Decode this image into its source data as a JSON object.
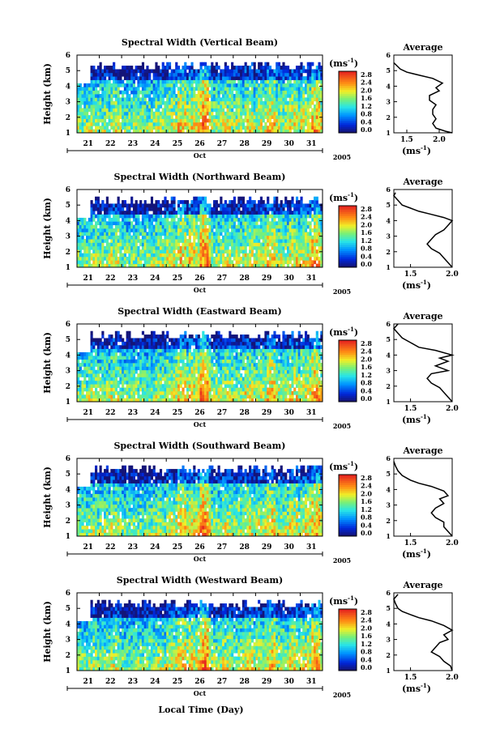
{
  "figure": {
    "x_axis_label": "Local Time (Day)"
  },
  "chart_data": [
    {
      "type": "heatmap",
      "title": "Spectral Width (Vertical Beam)",
      "ylabel": "Height (km)",
      "y_ticks": [
        1,
        2,
        3,
        4,
        5,
        6
      ],
      "ylim": [
        1,
        6
      ],
      "x_days": [
        "21",
        "22",
        "23",
        "24",
        "25",
        "26",
        "27",
        "28",
        "29",
        "30",
        "31"
      ],
      "x_month_label": "Oct",
      "x_year_label": "2005",
      "colorbar_unit": "(ms",
      "colorbar_unit_exp": "-1",
      "colorbar_unit_close": ")",
      "colorbar_ticks": [
        "2.8",
        "2.4",
        "2.0",
        "1.6",
        "1.2",
        "0.8",
        "0.4",
        "0.0"
      ],
      "colorbar_range": [
        0,
        3.0
      ],
      "average": {
        "title": "Average",
        "xlabel": "(ms",
        "xlabel_exp": "-1",
        "xlabel_close": ")",
        "x_ticks": [
          "1.5",
          "2.0"
        ],
        "x_tick_values": [
          1.5,
          2.0
        ],
        "xlim": [
          1.3,
          2.2
        ],
        "ylim": [
          1,
          6
        ],
        "y_ticks": [
          1,
          2,
          3,
          4,
          5,
          6
        ],
        "profile": [
          [
            2.2,
            1.0
          ],
          [
            2.1,
            1.1
          ],
          [
            1.95,
            1.3
          ],
          [
            1.9,
            1.6
          ],
          [
            1.95,
            1.9
          ],
          [
            1.9,
            2.2
          ],
          [
            1.9,
            2.5
          ],
          [
            1.95,
            2.8
          ],
          [
            1.85,
            3.1
          ],
          [
            1.85,
            3.4
          ],
          [
            2.0,
            3.7
          ],
          [
            1.95,
            3.9
          ],
          [
            2.05,
            4.2
          ],
          [
            1.9,
            4.5
          ],
          [
            1.7,
            4.7
          ],
          [
            1.5,
            4.9
          ],
          [
            1.4,
            5.1
          ],
          [
            1.35,
            5.3
          ],
          [
            1.3,
            5.5
          ]
        ]
      }
    },
    {
      "type": "heatmap",
      "title": "Spectral Width (Northward Beam)",
      "ylabel": "Height (km)",
      "y_ticks": [
        1,
        2,
        3,
        4,
        5,
        6
      ],
      "ylim": [
        1,
        6
      ],
      "x_days": [
        "21",
        "22",
        "23",
        "24",
        "25",
        "26",
        "27",
        "28",
        "29",
        "30",
        "31"
      ],
      "x_month_label": "Oct",
      "x_year_label": "2005",
      "colorbar_unit": "(ms",
      "colorbar_unit_exp": "-1",
      "colorbar_unit_close": ")",
      "colorbar_ticks": [
        "2.8",
        "2.4",
        "2.0",
        "1.6",
        "1.2",
        "0.8",
        "0.4",
        "0.0"
      ],
      "colorbar_range": [
        0,
        3.0
      ],
      "average": {
        "title": "Average",
        "xlabel": "(ms",
        "xlabel_exp": "-1",
        "xlabel_close": ")",
        "x_ticks": [
          "1.5",
          "2.0"
        ],
        "x_tick_values": [
          1.5,
          2.0
        ],
        "xlim": [
          1.3,
          2.0
        ],
        "ylim": [
          1,
          6
        ],
        "y_ticks": [
          1,
          2,
          3,
          4,
          5,
          6
        ],
        "profile": [
          [
            2.0,
            1.0
          ],
          [
            1.95,
            1.3
          ],
          [
            1.9,
            1.6
          ],
          [
            1.85,
            1.9
          ],
          [
            1.75,
            2.2
          ],
          [
            1.7,
            2.5
          ],
          [
            1.75,
            2.8
          ],
          [
            1.8,
            3.1
          ],
          [
            1.9,
            3.4
          ],
          [
            1.95,
            3.7
          ],
          [
            2.0,
            4.0
          ],
          [
            1.9,
            4.2
          ],
          [
            1.75,
            4.4
          ],
          [
            1.6,
            4.6
          ],
          [
            1.5,
            4.8
          ],
          [
            1.4,
            5.0
          ],
          [
            1.35,
            5.3
          ],
          [
            1.3,
            5.6
          ],
          [
            1.32,
            5.8
          ]
        ]
      }
    },
    {
      "type": "heatmap",
      "title": "Spectral Width (Eastward Beam)",
      "ylabel": "Height (km)",
      "y_ticks": [
        1,
        2,
        3,
        4,
        5,
        6
      ],
      "ylim": [
        1,
        6
      ],
      "x_days": [
        "21",
        "22",
        "23",
        "24",
        "25",
        "26",
        "27",
        "28",
        "29",
        "30",
        "31"
      ],
      "x_month_label": "Oct",
      "x_year_label": "2005",
      "colorbar_unit": "(ms",
      "colorbar_unit_exp": "-1",
      "colorbar_unit_close": ")",
      "colorbar_ticks": [
        "2.8",
        "2.4",
        "2.0",
        "1.6",
        "1.2",
        "0.8",
        "0.4",
        "0.0"
      ],
      "colorbar_range": [
        0,
        3.0
      ],
      "average": {
        "title": "Average",
        "xlabel": "(ms",
        "xlabel_exp": "-1",
        "xlabel_close": ")",
        "x_ticks": [
          "1.5",
          "2.0"
        ],
        "x_tick_values": [
          1.5,
          2.0
        ],
        "xlim": [
          1.3,
          2.0
        ],
        "ylim": [
          1,
          6
        ],
        "y_ticks": [
          1,
          2,
          3,
          4,
          5,
          6
        ],
        "profile": [
          [
            2.0,
            1.0
          ],
          [
            1.95,
            1.3
          ],
          [
            1.9,
            1.6
          ],
          [
            1.85,
            1.9
          ],
          [
            1.75,
            2.2
          ],
          [
            1.7,
            2.5
          ],
          [
            1.75,
            2.8
          ],
          [
            1.95,
            3.0
          ],
          [
            1.8,
            3.3
          ],
          [
            1.95,
            3.6
          ],
          [
            1.85,
            3.8
          ],
          [
            2.0,
            4.0
          ],
          [
            1.8,
            4.3
          ],
          [
            1.6,
            4.5
          ],
          [
            1.5,
            4.8
          ],
          [
            1.4,
            5.1
          ],
          [
            1.35,
            5.4
          ],
          [
            1.3,
            5.7
          ],
          [
            1.35,
            6.0
          ]
        ]
      }
    },
    {
      "type": "heatmap",
      "title": "Spectral Width (Southward Beam)",
      "ylabel": "Height (km)",
      "y_ticks": [
        1,
        2,
        3,
        4,
        5,
        6
      ],
      "ylim": [
        1,
        6
      ],
      "x_days": [
        "21",
        "22",
        "23",
        "24",
        "25",
        "26",
        "27",
        "28",
        "29",
        "30",
        "31"
      ],
      "x_month_label": "Oct",
      "x_year_label": "2005",
      "colorbar_unit": "(ms",
      "colorbar_unit_exp": "-1",
      "colorbar_unit_close": ")",
      "colorbar_ticks": [
        "2.8",
        "2.4",
        "2.0",
        "1.6",
        "1.2",
        "0.8",
        "0.4",
        "0.0"
      ],
      "colorbar_range": [
        0,
        3.0
      ],
      "average": {
        "title": "Average",
        "xlabel": "(ms",
        "xlabel_exp": "-1",
        "xlabel_close": ")",
        "x_ticks": [
          "1.5",
          "2.0"
        ],
        "x_tick_values": [
          1.5,
          2.0
        ],
        "xlim": [
          1.3,
          2.0
        ],
        "ylim": [
          1,
          6
        ],
        "y_ticks": [
          1,
          2,
          3,
          4,
          5,
          6
        ],
        "profile": [
          [
            2.0,
            1.0
          ],
          [
            1.95,
            1.3
          ],
          [
            1.9,
            1.6
          ],
          [
            1.9,
            1.9
          ],
          [
            1.8,
            2.2
          ],
          [
            1.75,
            2.5
          ],
          [
            1.8,
            2.8
          ],
          [
            1.9,
            3.1
          ],
          [
            1.85,
            3.4
          ],
          [
            1.95,
            3.6
          ],
          [
            1.9,
            3.9
          ],
          [
            1.75,
            4.2
          ],
          [
            1.6,
            4.4
          ],
          [
            1.5,
            4.6
          ],
          [
            1.4,
            4.9
          ],
          [
            1.35,
            5.2
          ],
          [
            1.32,
            5.5
          ],
          [
            1.3,
            5.8
          ]
        ]
      }
    },
    {
      "type": "heatmap",
      "title": "Spectral Width (Westward Beam)",
      "ylabel": "Height (km)",
      "y_ticks": [
        1,
        2,
        3,
        4,
        5,
        6
      ],
      "ylim": [
        1,
        6
      ],
      "x_days": [
        "21",
        "22",
        "23",
        "24",
        "25",
        "26",
        "27",
        "28",
        "29",
        "30",
        "31"
      ],
      "x_month_label": "Oct",
      "x_year_label": "2005",
      "colorbar_unit": "(ms",
      "colorbar_unit_exp": "-1",
      "colorbar_unit_close": ")",
      "colorbar_ticks": [
        "2.8",
        "2.4",
        "2.0",
        "1.6",
        "1.2",
        "0.8",
        "0.4",
        "0.0"
      ],
      "colorbar_range": [
        0,
        3.0
      ],
      "average": {
        "title": "Average",
        "xlabel": "(ms",
        "xlabel_exp": "-1",
        "xlabel_close": ")",
        "x_ticks": [
          "1.5",
          "2.0"
        ],
        "x_tick_values": [
          1.5,
          2.0
        ],
        "xlim": [
          1.3,
          2.0
        ],
        "ylim": [
          1,
          6
        ],
        "y_ticks": [
          1,
          2,
          3,
          4,
          5,
          6
        ],
        "profile": [
          [
            2.0,
            1.0
          ],
          [
            1.98,
            1.3
          ],
          [
            1.9,
            1.6
          ],
          [
            1.85,
            1.9
          ],
          [
            1.75,
            2.2
          ],
          [
            1.8,
            2.5
          ],
          [
            1.85,
            2.8
          ],
          [
            1.95,
            3.0
          ],
          [
            1.9,
            3.3
          ],
          [
            2.0,
            3.6
          ],
          [
            1.9,
            3.9
          ],
          [
            1.75,
            4.2
          ],
          [
            1.6,
            4.4
          ],
          [
            1.5,
            4.6
          ],
          [
            1.4,
            4.8
          ],
          [
            1.35,
            5.0
          ],
          [
            1.32,
            5.3
          ],
          [
            1.3,
            5.6
          ],
          [
            1.35,
            5.9
          ]
        ]
      }
    }
  ]
}
